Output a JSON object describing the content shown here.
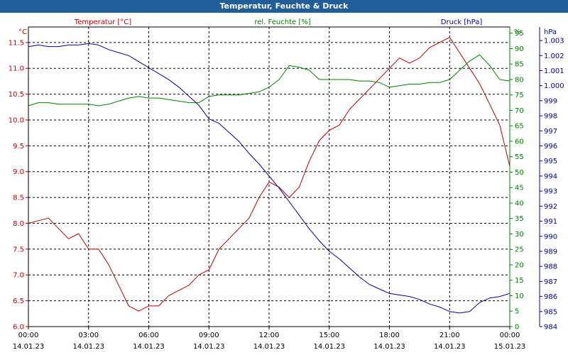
{
  "window": {
    "title": "Temperatur, Feuchte & Druck"
  },
  "chart_data": {
    "type": "line",
    "title": "Temperatur, Feuchte & Druck",
    "x_ticks": [
      {
        "time": "00:00",
        "date": "14.01.23"
      },
      {
        "time": "03:00",
        "date": "14.01.23"
      },
      {
        "time": "06:00",
        "date": "14.01.23"
      },
      {
        "time": "09:00",
        "date": "14.01.23"
      },
      {
        "time": "12:00",
        "date": "14.01.23"
      },
      {
        "time": "15:00",
        "date": "14.01.23"
      },
      {
        "time": "18:00",
        "date": "14.01.23"
      },
      {
        "time": "21:00",
        "date": "14.01.23"
      },
      {
        "time": "00:00",
        "date": "15.01.23"
      }
    ],
    "axes": {
      "temperature": {
        "unit": "°C",
        "label": "Temperatur [°C]",
        "color": "#c00000",
        "range": [
          6.0,
          11.8
        ],
        "ticks": [
          "6.0",
          "6.5",
          "7.0",
          "7.5",
          "8.0",
          "8.5",
          "9.0",
          "9.5",
          "10.0",
          "10.5",
          "11.0",
          "11.5"
        ]
      },
      "humidity": {
        "unit": "%",
        "label": "rel. Feuchte [%]",
        "color": "#008000",
        "range": [
          0,
          97
        ],
        "ticks": [
          "0",
          "5",
          "10",
          "15",
          "20",
          "25",
          "30",
          "35",
          "40",
          "45",
          "50",
          "55",
          "60",
          "65",
          "70",
          "75",
          "80",
          "85",
          "90",
          "95"
        ]
      },
      "pressure": {
        "unit": "hPa",
        "label": "Druck [hPa]",
        "color": "#0000a0",
        "range": [
          984,
          1003.9
        ],
        "ticks": [
          "984",
          "985",
          "986",
          "987",
          "988",
          "989",
          "990",
          "991",
          "992",
          "993",
          "994",
          "995",
          "996",
          "997",
          "998",
          "999",
          "1.000",
          "1.001",
          "1.002",
          "1.003"
        ]
      }
    },
    "grid": true,
    "series": [
      {
        "name": "Temperatur [°C]",
        "axis": "temperature",
        "points": [
          [
            0,
            8.0
          ],
          [
            0.5,
            8.05
          ],
          [
            1,
            8.1
          ],
          [
            1.5,
            7.9
          ],
          [
            2,
            7.7
          ],
          [
            2.5,
            7.8
          ],
          [
            3,
            7.5
          ],
          [
            3.5,
            7.5
          ],
          [
            4,
            7.2
          ],
          [
            4.5,
            6.8
          ],
          [
            5,
            6.4
          ],
          [
            5.5,
            6.3
          ],
          [
            6,
            6.4
          ],
          [
            6.5,
            6.4
          ],
          [
            7,
            6.6
          ],
          [
            7.5,
            6.7
          ],
          [
            8,
            6.8
          ],
          [
            8.5,
            7.0
          ],
          [
            9,
            7.1
          ],
          [
            9.5,
            7.5
          ],
          [
            10,
            7.7
          ],
          [
            10.5,
            7.9
          ],
          [
            11,
            8.1
          ],
          [
            11.5,
            8.5
          ],
          [
            12,
            8.8
          ],
          [
            12.5,
            8.7
          ],
          [
            13,
            8.5
          ],
          [
            13.5,
            8.7
          ],
          [
            14,
            9.2
          ],
          [
            14.5,
            9.6
          ],
          [
            15,
            9.8
          ],
          [
            15.5,
            9.9
          ],
          [
            16,
            10.2
          ],
          [
            16.5,
            10.4
          ],
          [
            17,
            10.6
          ],
          [
            17.5,
            10.8
          ],
          [
            18,
            11.0
          ],
          [
            18.5,
            11.2
          ],
          [
            19,
            11.1
          ],
          [
            19.5,
            11.2
          ],
          [
            20,
            11.4
          ],
          [
            20.5,
            11.5
          ],
          [
            21,
            11.6
          ],
          [
            21.5,
            11.3
          ],
          [
            22,
            11.0
          ],
          [
            22.5,
            10.7
          ],
          [
            23,
            10.3
          ],
          [
            23.5,
            9.9
          ],
          [
            24,
            9.1
          ]
        ]
      },
      {
        "name": "rel. Feuchte [%]",
        "axis": "humidity",
        "points": [
          [
            0,
            71.5
          ],
          [
            0.5,
            72.5
          ],
          [
            1,
            72.5
          ],
          [
            1.5,
            72
          ],
          [
            2,
            72
          ],
          [
            2.5,
            72
          ],
          [
            3,
            72
          ],
          [
            3.5,
            71.5
          ],
          [
            4,
            72
          ],
          [
            4.5,
            73
          ],
          [
            5,
            74
          ],
          [
            5.5,
            74.5
          ],
          [
            6,
            74
          ],
          [
            6.5,
            74
          ],
          [
            7,
            73.5
          ],
          [
            7.5,
            73
          ],
          [
            8,
            72.5
          ],
          [
            8.5,
            72.5
          ],
          [
            9,
            74.5
          ],
          [
            9.5,
            75
          ],
          [
            10,
            75
          ],
          [
            10.5,
            75
          ],
          [
            11,
            75.5
          ],
          [
            11.5,
            76
          ],
          [
            12,
            77.5
          ],
          [
            12.5,
            80
          ],
          [
            13,
            84.5
          ],
          [
            13.5,
            84
          ],
          [
            14,
            83
          ],
          [
            14.5,
            80
          ],
          [
            15,
            80
          ],
          [
            15.5,
            80
          ],
          [
            16,
            80
          ],
          [
            16.5,
            79.5
          ],
          [
            17,
            79.5
          ],
          [
            17.5,
            79
          ],
          [
            18,
            77.5
          ],
          [
            18.5,
            78
          ],
          [
            19,
            78.5
          ],
          [
            19.5,
            78.5
          ],
          [
            20,
            79
          ],
          [
            20.5,
            79
          ],
          [
            21,
            80
          ],
          [
            21.5,
            83
          ],
          [
            22,
            86
          ],
          [
            22.5,
            88
          ],
          [
            23,
            84.5
          ],
          [
            23.5,
            80
          ],
          [
            24,
            79.5
          ]
        ]
      },
      {
        "name": "Druck [hPa]",
        "axis": "pressure",
        "points": [
          [
            0,
            1002.6
          ],
          [
            0.5,
            1002.7
          ],
          [
            1,
            1002.6
          ],
          [
            1.5,
            1002.6
          ],
          [
            2,
            1002.7
          ],
          [
            2.5,
            1002.7
          ],
          [
            3,
            1002.8
          ],
          [
            3.5,
            1002.7
          ],
          [
            4,
            1002.4
          ],
          [
            4.5,
            1002.2
          ],
          [
            5,
            1002.0
          ],
          [
            5.5,
            1001.6
          ],
          [
            6,
            1001.2
          ],
          [
            6.5,
            1000.8
          ],
          [
            7,
            1000.4
          ],
          [
            7.5,
            999.9
          ],
          [
            8,
            999.3
          ],
          [
            8.5,
            998.7
          ],
          [
            9,
            997.8
          ],
          [
            9.5,
            997.5
          ],
          [
            10,
            996.9
          ],
          [
            10.5,
            996.3
          ],
          [
            11,
            995.5
          ],
          [
            11.5,
            994.8
          ],
          [
            12,
            994.0
          ],
          [
            12.5,
            993.2
          ],
          [
            13,
            992.3
          ],
          [
            13.5,
            991.4
          ],
          [
            14,
            990.5
          ],
          [
            14.5,
            989.7
          ],
          [
            15,
            989.0
          ],
          [
            15.5,
            988.5
          ],
          [
            16,
            987.9
          ],
          [
            16.5,
            987.3
          ],
          [
            17,
            986.8
          ],
          [
            17.5,
            986.5
          ],
          [
            18,
            986.2
          ],
          [
            18.5,
            986.1
          ],
          [
            19,
            986.0
          ],
          [
            19.5,
            985.8
          ],
          [
            20,
            985.5
          ],
          [
            20.5,
            985.3
          ],
          [
            21,
            985.0
          ],
          [
            21.5,
            984.9
          ],
          [
            22,
            985.0
          ],
          [
            22.5,
            985.6
          ],
          [
            23,
            985.9
          ],
          [
            23.5,
            986.0
          ],
          [
            24,
            986.2
          ]
        ]
      }
    ]
  }
}
